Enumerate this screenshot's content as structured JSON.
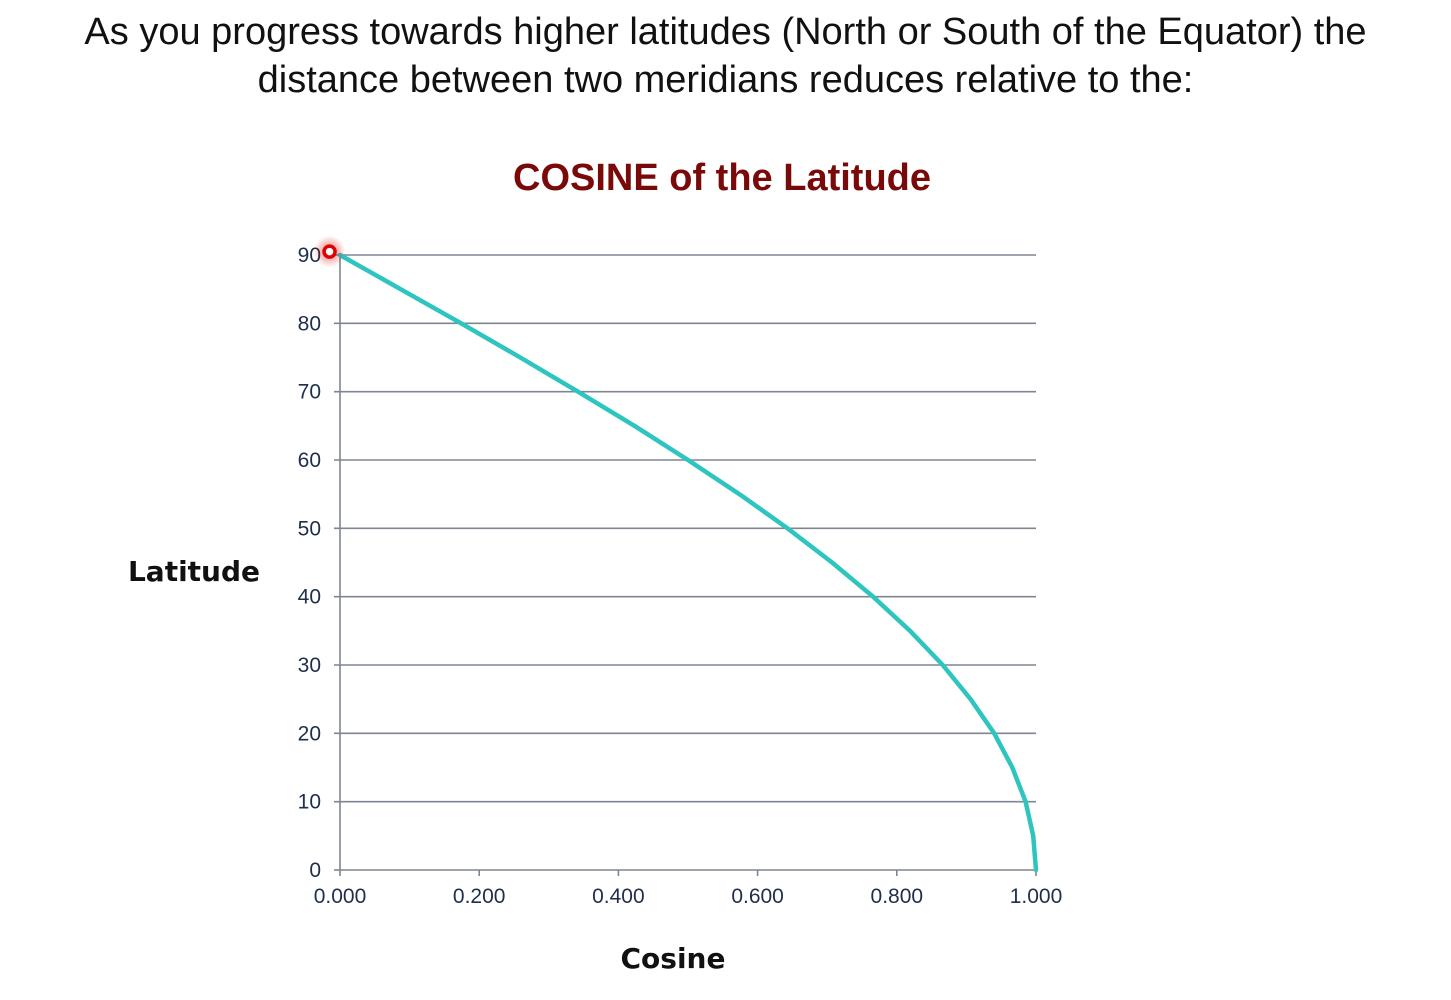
{
  "question": {
    "line1": "As you progress towards higher latitudes (North or South of the Equator) the",
    "line2": "distance between two meridians reduces relative to the:"
  },
  "chart_data": {
    "type": "line",
    "title": "COSINE of the Latitude",
    "xlabel": "Cosine",
    "ylabel": "Latitude",
    "xlim": [
      0,
      1
    ],
    "ylim": [
      0,
      90
    ],
    "x_ticks": [
      "0.000",
      "0.200",
      "0.400",
      "0.600",
      "0.800",
      "1.000"
    ],
    "y_ticks": [
      "0",
      "10",
      "20",
      "30",
      "40",
      "50",
      "60",
      "70",
      "80",
      "90"
    ],
    "grid": "horizontal",
    "series": [
      {
        "color": "#2ec4bf",
        "x": [
          1.0,
          0.996,
          0.985,
          0.966,
          0.94,
          0.906,
          0.866,
          0.819,
          0.766,
          0.707,
          0.643,
          0.574,
          0.5,
          0.423,
          0.342,
          0.259,
          0.174,
          0.087,
          0.0
        ],
        "y": [
          0,
          5,
          10,
          15,
          20,
          25,
          30,
          35,
          40,
          45,
          50,
          55,
          60,
          65,
          70,
          75,
          80,
          85,
          90
        ]
      }
    ],
    "marker": {
      "x": -0.015,
      "y": 90.5,
      "color": "#e00000"
    },
    "colors": {
      "title": "#7a0a0a",
      "grid": "#7f8590",
      "axis": "#7f8590"
    }
  }
}
